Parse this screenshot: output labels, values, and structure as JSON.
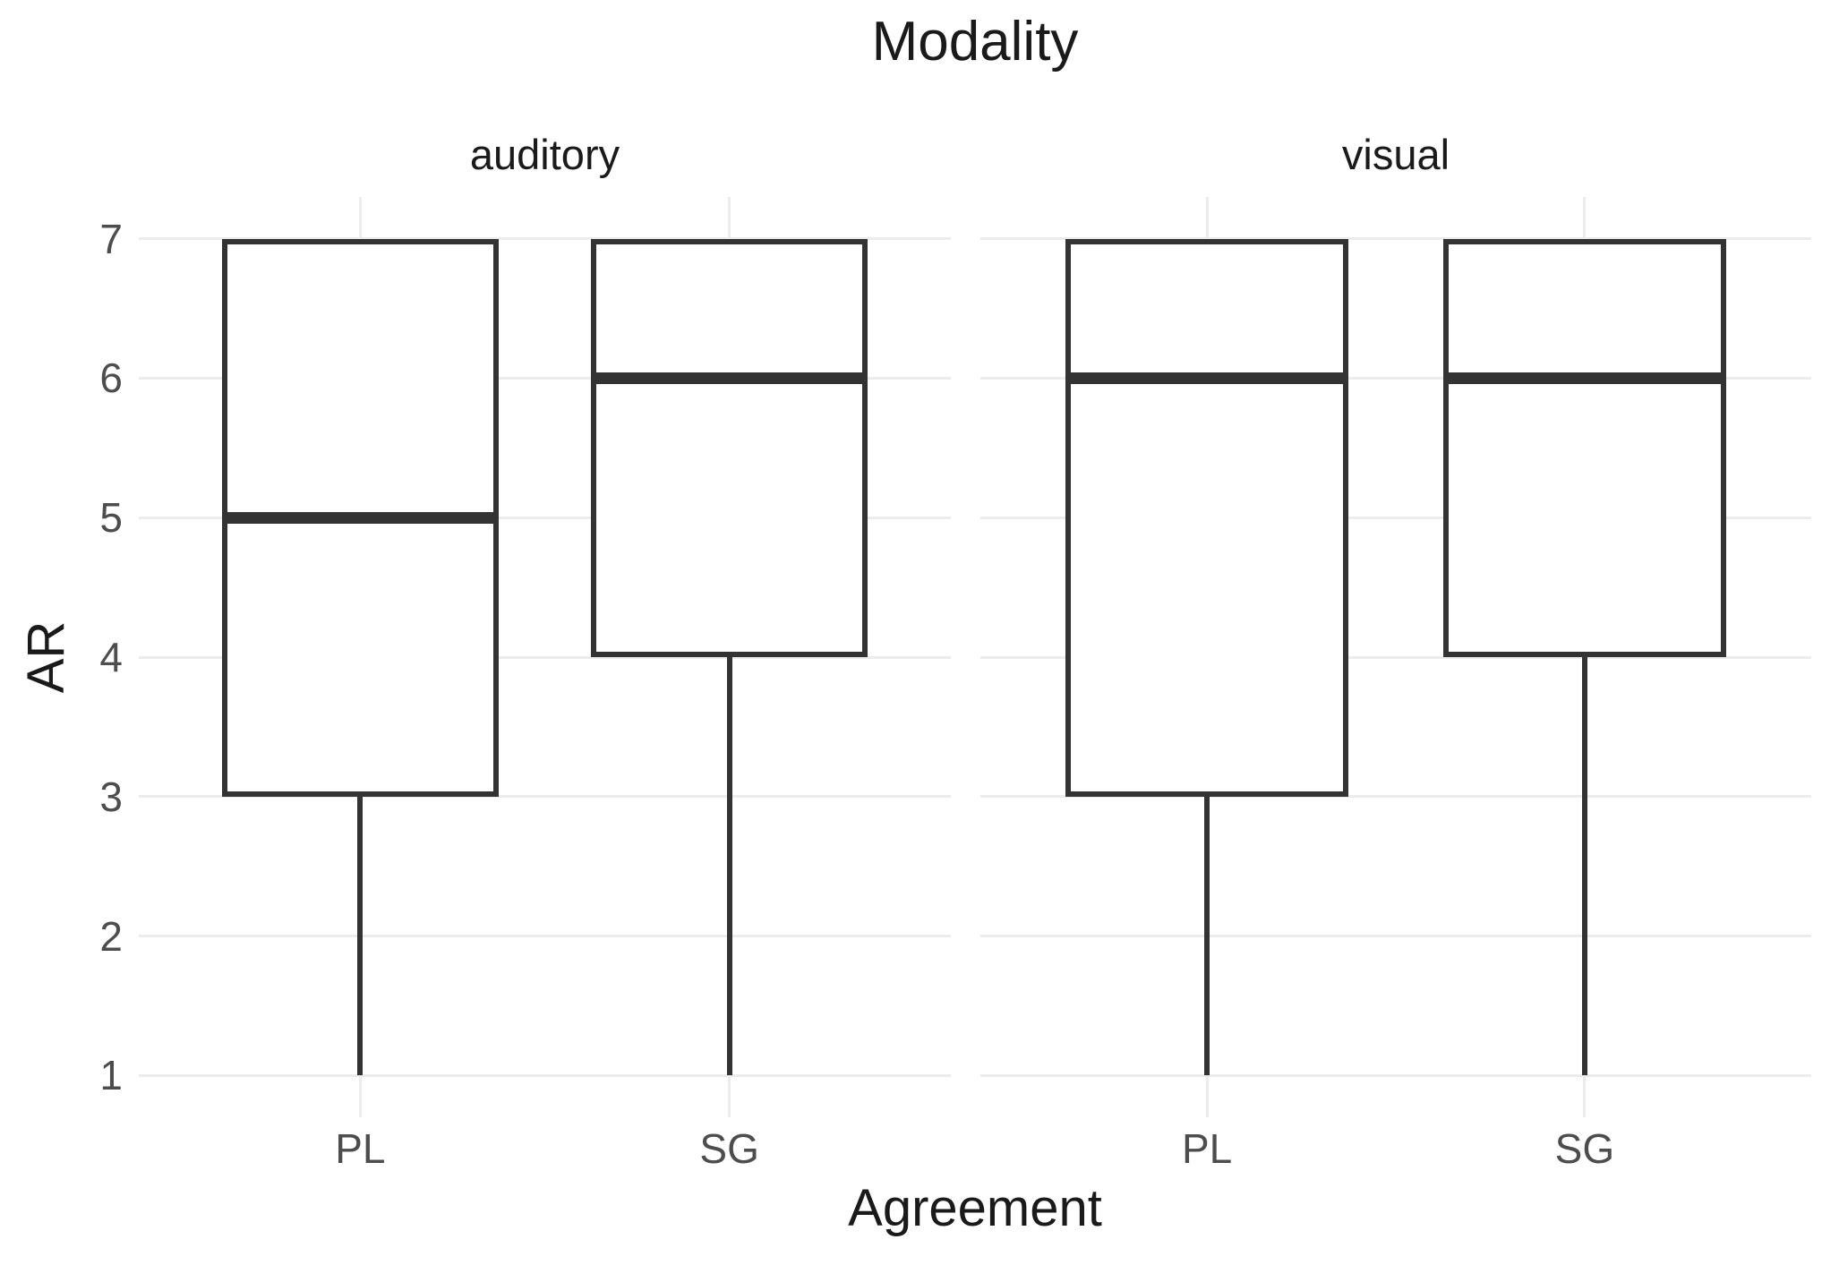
{
  "title": "Modality",
  "x_axis": {
    "title": "Agreement",
    "categories": [
      "PL",
      "SG"
    ]
  },
  "y_axis": {
    "title": "AR",
    "ticks": [
      1,
      2,
      3,
      4,
      5,
      6,
      7
    ]
  },
  "facet_labels": [
    "auditory",
    "visual"
  ],
  "chart_data": {
    "type": "boxplot",
    "title": "Modality",
    "xlabel": "Agreement",
    "ylabel": "AR",
    "facet_variable": "Modality",
    "categories": [
      "PL",
      "SG"
    ],
    "y_ticks": [
      1,
      2,
      3,
      4,
      5,
      6,
      7
    ],
    "ylim_data": [
      1,
      7
    ],
    "ylim_expanded": [
      0.7,
      7.3
    ],
    "grid": "major horizontal and vertical, no minor",
    "legend": "none",
    "facets": [
      {
        "label": "auditory",
        "boxes": [
          {
            "category": "PL",
            "whisker_low": 1,
            "q1": 3,
            "median": 5,
            "q3": 7,
            "whisker_high": 7
          },
          {
            "category": "SG",
            "whisker_low": 1,
            "q1": 4,
            "median": 6,
            "q3": 7,
            "whisker_high": 7
          }
        ]
      },
      {
        "label": "visual",
        "boxes": [
          {
            "category": "PL",
            "whisker_low": 1,
            "q1": 3,
            "median": 6,
            "q3": 7,
            "whisker_high": 7
          },
          {
            "category": "SG",
            "whisker_low": 1,
            "q1": 4,
            "median": 6,
            "q3": 7,
            "whisker_high": 7
          }
        ]
      }
    ],
    "colors": {
      "background": "#ffffff",
      "box_stroke": "#333333",
      "box_fill": "#ffffff",
      "gridline": "#ececec",
      "tick_text": "#4d4d4d",
      "title_text": "#1a1a1a"
    }
  }
}
